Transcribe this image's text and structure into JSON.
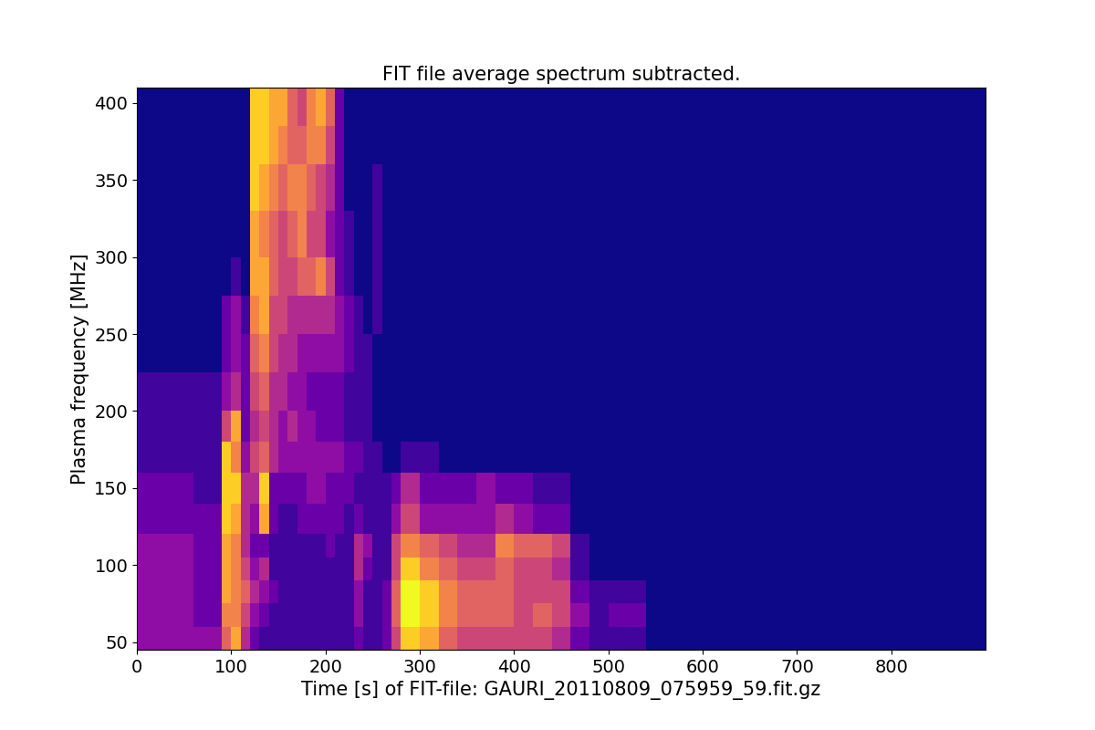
{
  "chart_data": {
    "type": "heatmap",
    "title": "FIT file average spectrum subtracted.",
    "x_label": "Time [s] of FIT-file: GAURI_20110809_075959_59.fit.gz",
    "y_label": "Plasma frequency [MHz]",
    "xlim": [
      0,
      900
    ],
    "ylim": [
      45,
      410
    ],
    "xticks": [
      0,
      100,
      200,
      300,
      400,
      500,
      600,
      700,
      800
    ],
    "yticks": [
      50,
      100,
      150,
      200,
      250,
      300,
      350,
      400
    ],
    "color": "plasma",
    "x_edges": [
      0,
      30,
      60,
      90,
      100,
      110,
      120,
      130,
      140,
      150,
      160,
      170,
      180,
      190,
      200,
      210,
      220,
      230,
      240,
      250,
      260,
      270,
      280,
      300,
      320,
      340,
      360,
      380,
      400,
      420,
      440,
      460,
      480,
      500,
      540,
      600,
      700,
      800,
      900
    ],
    "y_edges": [
      45,
      60,
      75,
      90,
      105,
      120,
      140,
      160,
      180,
      200,
      225,
      250,
      275,
      300,
      330,
      360,
      385,
      410
    ],
    "cells": [
      [
        3,
        3,
        3,
        3,
        3,
        2,
        2,
        1,
        1,
        1,
        0,
        0,
        0,
        0,
        0,
        0,
        0
      ],
      [
        3,
        3,
        3,
        3,
        3,
        2,
        2,
        1,
        1,
        1,
        0,
        0,
        0,
        0,
        0,
        0,
        0
      ],
      [
        3,
        2,
        2,
        2,
        2,
        2,
        1,
        1,
        1,
        1,
        0,
        0,
        0,
        0,
        0,
        0,
        0
      ],
      [
        6,
        7,
        8,
        8,
        8,
        9,
        9,
        9,
        5,
        3,
        2,
        2,
        0,
        0,
        0,
        0,
        0
      ],
      [
        8,
        7,
        7,
        7,
        7,
        8,
        9,
        7,
        8,
        4,
        3,
        3,
        1,
        0,
        0,
        0,
        0
      ],
      [
        4,
        5,
        6,
        5,
        4,
        4,
        4,
        3,
        2,
        2,
        2,
        1,
        0,
        0,
        0,
        0,
        0
      ],
      [
        2,
        3,
        4,
        3,
        2,
        3,
        4,
        5,
        4,
        5,
        6,
        7,
        8,
        8,
        9,
        9,
        9
      ],
      [
        1,
        2,
        3,
        4,
        2,
        8,
        9,
        6,
        5,
        6,
        7,
        8,
        8,
        7,
        8,
        9,
        9
      ],
      [
        1,
        1,
        2,
        1,
        1,
        2,
        2,
        4,
        4,
        4,
        5,
        5,
        6,
        6,
        7,
        8,
        8
      ],
      [
        1,
        1,
        1,
        1,
        1,
        1,
        2,
        3,
        3,
        4,
        4,
        5,
        5,
        5,
        6,
        7,
        8
      ],
      [
        1,
        1,
        1,
        1,
        1,
        1,
        2,
        3,
        4,
        3,
        4,
        4,
        5,
        6,
        7,
        6,
        6
      ],
      [
        1,
        1,
        1,
        1,
        1,
        2,
        2,
        3,
        3,
        3,
        3,
        4,
        6,
        7,
        7,
        6,
        5
      ],
      [
        1,
        1,
        1,
        1,
        1,
        2,
        3,
        3,
        3,
        2,
        3,
        4,
        6,
        5,
        6,
        7,
        7
      ],
      [
        1,
        1,
        1,
        1,
        1,
        2,
        3,
        3,
        2,
        2,
        3,
        4,
        7,
        5,
        5,
        7,
        8
      ],
      [
        1,
        1,
        1,
        1,
        2,
        2,
        2,
        3,
        2,
        2,
        3,
        4,
        5,
        3,
        4,
        5,
        6
      ],
      [
        1,
        1,
        1,
        1,
        1,
        2,
        2,
        3,
        2,
        2,
        3,
        3,
        2,
        2,
        2,
        2,
        2
      ],
      [
        1,
        1,
        1,
        1,
        1,
        1,
        2,
        2,
        1,
        1,
        2,
        2,
        1,
        1,
        0,
        0,
        0
      ],
      [
        2,
        3,
        3,
        4,
        4,
        2,
        1,
        2,
        1,
        1,
        1,
        1,
        0,
        0,
        0,
        0,
        0
      ],
      [
        1,
        1,
        1,
        2,
        3,
        1,
        1,
        1,
        1,
        1,
        1,
        0,
        0,
        0,
        0,
        0,
        0
      ],
      [
        1,
        1,
        1,
        1,
        1,
        1,
        1,
        1,
        0,
        0,
        0,
        1,
        1,
        1,
        1,
        0,
        0
      ],
      [
        2,
        2,
        2,
        1,
        1,
        1,
        1,
        0,
        0,
        0,
        0,
        0,
        0,
        0,
        0,
        0,
        0
      ],
      [
        5,
        6,
        6,
        5,
        5,
        3,
        2,
        0,
        0,
        0,
        0,
        0,
        0,
        0,
        0,
        0,
        0
      ],
      [
        9,
        10,
        10,
        9,
        7,
        5,
        4,
        1,
        0,
        0,
        0,
        0,
        0,
        0,
        0,
        0,
        0
      ],
      [
        8,
        9,
        9,
        7,
        6,
        3,
        2,
        1,
        0,
        0,
        0,
        0,
        0,
        0,
        0,
        0,
        0
      ],
      [
        6,
        7,
        7,
        6,
        5,
        3,
        2,
        0,
        0,
        0,
        0,
        0,
        0,
        0,
        0,
        0,
        0
      ],
      [
        5,
        6,
        6,
        5,
        4,
        3,
        2,
        0,
        0,
        0,
        0,
        0,
        0,
        0,
        0,
        0,
        0
      ],
      [
        5,
        6,
        6,
        5,
        4,
        3,
        3,
        0,
        0,
        0,
        0,
        0,
        0,
        0,
        0,
        0,
        0
      ],
      [
        5,
        6,
        6,
        6,
        7,
        4,
        2,
        0,
        0,
        0,
        0,
        0,
        0,
        0,
        0,
        0,
        0
      ],
      [
        5,
        5,
        5,
        5,
        6,
        3,
        2,
        0,
        0,
        0,
        0,
        0,
        0,
        0,
        0,
        0,
        0
      ],
      [
        5,
        6,
        5,
        5,
        6,
        2,
        1,
        0,
        0,
        0,
        0,
        0,
        0,
        0,
        0,
        0,
        0
      ],
      [
        4,
        5,
        5,
        4,
        5,
        2,
        1,
        0,
        0,
        0,
        0,
        0,
        0,
        0,
        0,
        0,
        0
      ],
      [
        2,
        3,
        2,
        1,
        1,
        0,
        0,
        0,
        0,
        0,
        0,
        0,
        0,
        0,
        0,
        0,
        0
      ],
      [
        1,
        1,
        1,
        0,
        0,
        0,
        0,
        0,
        0,
        0,
        0,
        0,
        0,
        0,
        0,
        0,
        0
      ],
      [
        1,
        2,
        1,
        0,
        0,
        0,
        0,
        0,
        0,
        0,
        0,
        0,
        0,
        0,
        0,
        0,
        0
      ],
      [
        0,
        0,
        0,
        0,
        0,
        0,
        0,
        0,
        0,
        0,
        0,
        0,
        0,
        0,
        0,
        0,
        0
      ],
      [
        0,
        0,
        0,
        0,
        0,
        0,
        0,
        0,
        0,
        0,
        0,
        0,
        0,
        0,
        0,
        0,
        0
      ],
      [
        0,
        0,
        0,
        0,
        0,
        0,
        0,
        0,
        0,
        0,
        0,
        0,
        0,
        0,
        0,
        0,
        0
      ],
      [
        0,
        0,
        0,
        0,
        0,
        0,
        0,
        0,
        0,
        0,
        0,
        0,
        0,
        0,
        0,
        0,
        0
      ]
    ]
  }
}
